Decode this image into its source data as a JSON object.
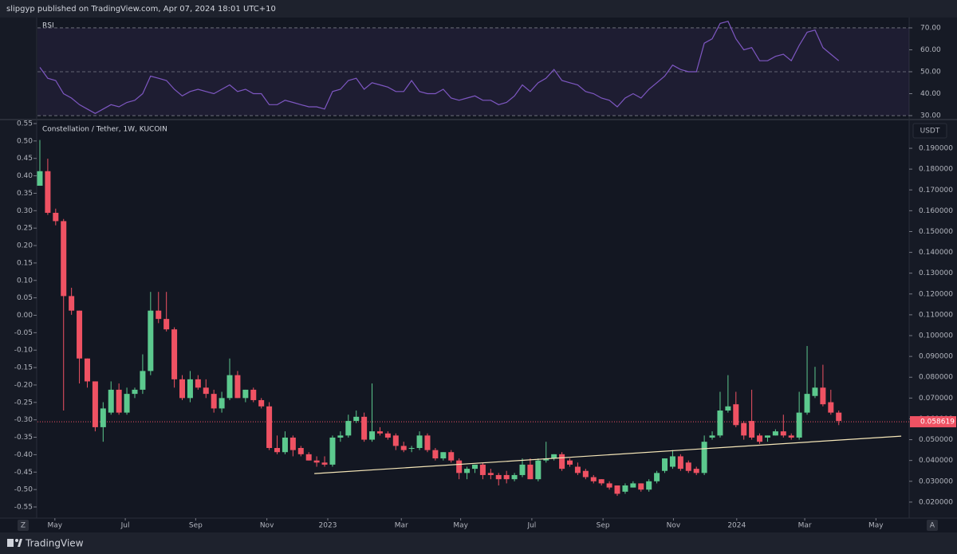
{
  "header": "slipgyp published on TradingView.com, Apr 07, 2024 18:01 UTC+10",
  "footer": "TradingView",
  "scale_button": "Z",
  "auto_button": "A",
  "chart_data": [
    {
      "type": "line",
      "title": "RSI",
      "color": "#7e57c2",
      "xlim": [
        -0.3,
        109.9
      ],
      "ylim": [
        28.2,
        74.7
      ],
      "yticks": [
        {
          "value": 30,
          "label": "30.00"
        },
        {
          "value": 40,
          "label": "40.00"
        },
        {
          "value": 50,
          "label": "50.00"
        },
        {
          "value": 60,
          "label": "60.00"
        },
        {
          "value": 70,
          "label": "70.00"
        }
      ],
      "levels": [
        30,
        50,
        70
      ],
      "values": [
        52,
        47,
        46,
        40,
        38,
        35,
        33,
        31,
        33,
        35,
        34,
        36,
        37,
        40,
        48,
        47,
        46,
        42,
        39,
        41,
        42,
        41,
        40,
        42,
        44,
        41,
        42,
        40,
        40,
        35,
        35,
        37,
        36,
        35,
        34,
        34,
        33,
        41,
        42,
        46,
        47,
        42,
        45,
        44,
        43,
        41,
        41,
        46,
        41,
        40,
        40,
        42,
        38,
        37,
        38,
        39,
        37,
        37,
        35,
        36,
        39,
        44,
        41,
        45,
        47,
        51,
        46,
        45,
        44,
        41,
        40,
        38,
        37,
        34,
        38,
        40,
        38,
        42,
        45,
        48,
        53,
        51,
        50,
        50,
        63,
        65,
        72,
        73,
        65,
        60,
        61,
        55,
        55,
        57,
        58,
        55,
        62,
        68,
        69,
        61,
        58,
        55
      ]
    },
    {
      "type": "candlestick",
      "title": "Constellation / Tether, 1W, KUCOIN",
      "currency": "USDT",
      "up_color": "#5cc98e",
      "down_color": "#ef5263",
      "xlim": [
        -0.3,
        109.9
      ],
      "ylim": [
        0.0123,
        0.2038
      ],
      "xticks": [
        {
          "value": 1.9,
          "label": "May"
        },
        {
          "value": 10.8,
          "label": "Jul"
        },
        {
          "value": 19.7,
          "label": "Sep"
        },
        {
          "value": 28.7,
          "label": "Nov"
        },
        {
          "value": 36.4,
          "label": "2023"
        },
        {
          "value": 45.7,
          "label": "Mar"
        },
        {
          "value": 53.2,
          "label": "May"
        },
        {
          "value": 62.2,
          "label": "Jul"
        },
        {
          "value": 71.2,
          "label": "Sep"
        },
        {
          "value": 80.1,
          "label": "Nov"
        },
        {
          "value": 88.1,
          "label": "2024"
        },
        {
          "value": 96.7,
          "label": "Mar"
        },
        {
          "value": 105.7,
          "label": "May"
        }
      ],
      "yticks": [
        {
          "value": 0.19,
          "label": "0.190000"
        },
        {
          "value": 0.18,
          "label": "0.180000"
        },
        {
          "value": 0.17,
          "label": "0.170000"
        },
        {
          "value": 0.16,
          "label": "0.160000"
        },
        {
          "value": 0.15,
          "label": "0.150000"
        },
        {
          "value": 0.14,
          "label": "0.140000"
        },
        {
          "value": 0.13,
          "label": "0.130000"
        },
        {
          "value": 0.12,
          "label": "0.120000"
        },
        {
          "value": 0.11,
          "label": "0.110000"
        },
        {
          "value": 0.1,
          "label": "0.100000"
        },
        {
          "value": 0.09,
          "label": "0.090000"
        },
        {
          "value": 0.08,
          "label": "0.080000"
        },
        {
          "value": 0.07,
          "label": "0.070000"
        },
        {
          "value": 0.06,
          "label": "0.060000"
        },
        {
          "value": 0.05,
          "label": "0.050000"
        },
        {
          "value": 0.04,
          "label": "0.040000"
        },
        {
          "value": 0.03,
          "label": "0.030000"
        },
        {
          "value": 0.02,
          "label": "0.020000"
        }
      ],
      "y2lim": [
        -0.582,
        0.5614
      ],
      "y2ticks": [
        0.55,
        {
          "value": 0.5,
          "label": "0.50"
        },
        0.45,
        {
          "value": 0.4,
          "label": "0.40"
        },
        0.35,
        {
          "value": 0.3,
          "label": "0.30"
        },
        0.25,
        {
          "value": 0.2,
          "label": "0.20"
        },
        0.15,
        {
          "value": 0.1,
          "label": "0.10"
        },
        0.05,
        {
          "value": 0,
          "label": "0.00"
        },
        -0.05,
        {
          "value": -0.1,
          "label": "-0.10"
        },
        -0.15,
        {
          "value": -0.2,
          "label": "-0.20"
        },
        -0.25,
        {
          "value": -0.3,
          "label": "-0.30"
        },
        -0.35,
        {
          "value": -0.4,
          "label": "-0.40"
        },
        -0.45,
        {
          "value": -0.5,
          "label": "-0.50"
        },
        -0.55
      ],
      "last_price": {
        "value": 0.058619,
        "label": "0.058619"
      },
      "trendline": {
        "x": [
          34.7,
          108.9
        ],
        "y": [
          0.0337,
          0.0517
        ],
        "color": "#f5e6b8"
      },
      "open": [
        0.172,
        0.179,
        0.159,
        0.155,
        0.119,
        0.112,
        0.089,
        0.078,
        0.056,
        0.063,
        0.074,
        0.063,
        0.072,
        0.074,
        0.083,
        0.112,
        0.108,
        0.103,
        0.079,
        0.07,
        0.079,
        0.075,
        0.072,
        0.065,
        0.07,
        0.081,
        0.07,
        0.074,
        0.069,
        0.066,
        0.046,
        0.044,
        0.051,
        0.046,
        0.043,
        0.04,
        0.039,
        0.038,
        0.051,
        0.052,
        0.059,
        0.061,
        0.05,
        0.054,
        0.053,
        0.052,
        0.047,
        0.046,
        0.046,
        0.052,
        0.045,
        0.041,
        0.044,
        0.04,
        0.034,
        0.036,
        0.038,
        0.034,
        0.033,
        0.033,
        0.031,
        0.033,
        0.038,
        0.031,
        0.04,
        0.041,
        0.043,
        0.04,
        0.037,
        0.035,
        0.032,
        0.031,
        0.029,
        0.028,
        0.025,
        0.027,
        0.029,
        0.026,
        0.03,
        0.035,
        0.037,
        0.042,
        0.039,
        0.036,
        0.034,
        0.051,
        0.052,
        0.064,
        0.067,
        0.058,
        0.059,
        0.052,
        0.051,
        0.052,
        0.054,
        0.052,
        0.051,
        0.063,
        0.071,
        0.075,
        0.068,
        0.063
      ],
      "high": [
        0.194,
        0.185,
        0.161,
        0.156,
        0.123,
        0.112,
        0.089,
        0.078,
        0.068,
        0.078,
        0.077,
        0.075,
        0.075,
        0.091,
        0.121,
        0.121,
        0.121,
        0.104,
        0.081,
        0.083,
        0.081,
        0.079,
        0.074,
        0.073,
        0.089,
        0.083,
        0.074,
        0.075,
        0.07,
        0.068,
        0.052,
        0.054,
        0.052,
        0.047,
        0.044,
        0.042,
        0.042,
        0.052,
        0.054,
        0.062,
        0.064,
        0.063,
        0.077,
        0.056,
        0.054,
        0.053,
        0.049,
        0.047,
        0.054,
        0.053,
        0.046,
        0.044,
        0.045,
        0.041,
        0.037,
        0.038,
        0.039,
        0.036,
        0.034,
        0.035,
        0.034,
        0.041,
        0.041,
        0.041,
        0.049,
        0.043,
        0.044,
        0.041,
        0.039,
        0.036,
        0.033,
        0.031,
        0.03,
        0.028,
        0.029,
        0.03,
        0.029,
        0.031,
        0.035,
        0.041,
        0.045,
        0.043,
        0.04,
        0.037,
        0.052,
        0.054,
        0.073,
        0.081,
        0.073,
        0.059,
        0.074,
        0.053,
        0.052,
        0.055,
        0.062,
        0.053,
        0.073,
        0.095,
        0.085,
        0.086,
        0.074,
        0.064
      ],
      "low": [
        0.172,
        0.158,
        0.153,
        0.064,
        0.11,
        0.077,
        0.075,
        0.054,
        0.049,
        0.062,
        0.062,
        0.062,
        0.07,
        0.072,
        0.081,
        0.106,
        0.102,
        0.075,
        0.069,
        0.068,
        0.074,
        0.07,
        0.063,
        0.063,
        0.069,
        0.07,
        0.068,
        0.068,
        0.065,
        0.045,
        0.043,
        0.043,
        0.042,
        0.042,
        0.04,
        0.037,
        0.037,
        0.037,
        0.049,
        0.051,
        0.058,
        0.049,
        0.049,
        0.052,
        0.05,
        0.045,
        0.044,
        0.044,
        0.045,
        0.044,
        0.04,
        0.04,
        0.039,
        0.031,
        0.031,
        0.034,
        0.031,
        0.031,
        0.028,
        0.029,
        0.03,
        0.032,
        0.031,
        0.03,
        0.039,
        0.04,
        0.035,
        0.037,
        0.033,
        0.031,
        0.029,
        0.028,
        0.026,
        0.023,
        0.024,
        0.027,
        0.025,
        0.025,
        0.029,
        0.034,
        0.036,
        0.035,
        0.034,
        0.033,
        0.033,
        0.05,
        0.051,
        0.063,
        0.056,
        0.05,
        0.05,
        0.048,
        0.049,
        0.052,
        0.051,
        0.05,
        0.05,
        0.062,
        0.07,
        0.066,
        0.062,
        0.057
      ],
      "close": [
        0.179,
        0.159,
        0.155,
        0.119,
        0.112,
        0.089,
        0.078,
        0.056,
        0.065,
        0.074,
        0.063,
        0.072,
        0.074,
        0.083,
        0.112,
        0.108,
        0.103,
        0.079,
        0.07,
        0.079,
        0.075,
        0.072,
        0.065,
        0.07,
        0.081,
        0.07,
        0.074,
        0.069,
        0.066,
        0.046,
        0.044,
        0.051,
        0.045,
        0.043,
        0.04,
        0.039,
        0.038,
        0.051,
        0.052,
        0.059,
        0.061,
        0.05,
        0.054,
        0.053,
        0.051,
        0.047,
        0.045,
        0.046,
        0.052,
        0.045,
        0.041,
        0.044,
        0.04,
        0.034,
        0.036,
        0.038,
        0.033,
        0.033,
        0.031,
        0.031,
        0.033,
        0.038,
        0.031,
        0.04,
        0.041,
        0.043,
        0.036,
        0.038,
        0.034,
        0.032,
        0.03,
        0.029,
        0.027,
        0.024,
        0.028,
        0.029,
        0.026,
        0.03,
        0.034,
        0.041,
        0.042,
        0.036,
        0.035,
        0.034,
        0.049,
        0.052,
        0.064,
        0.066,
        0.057,
        0.052,
        0.051,
        0.049,
        0.052,
        0.054,
        0.052,
        0.051,
        0.063,
        0.072,
        0.075,
        0.067,
        0.063,
        0.059
      ]
    }
  ]
}
